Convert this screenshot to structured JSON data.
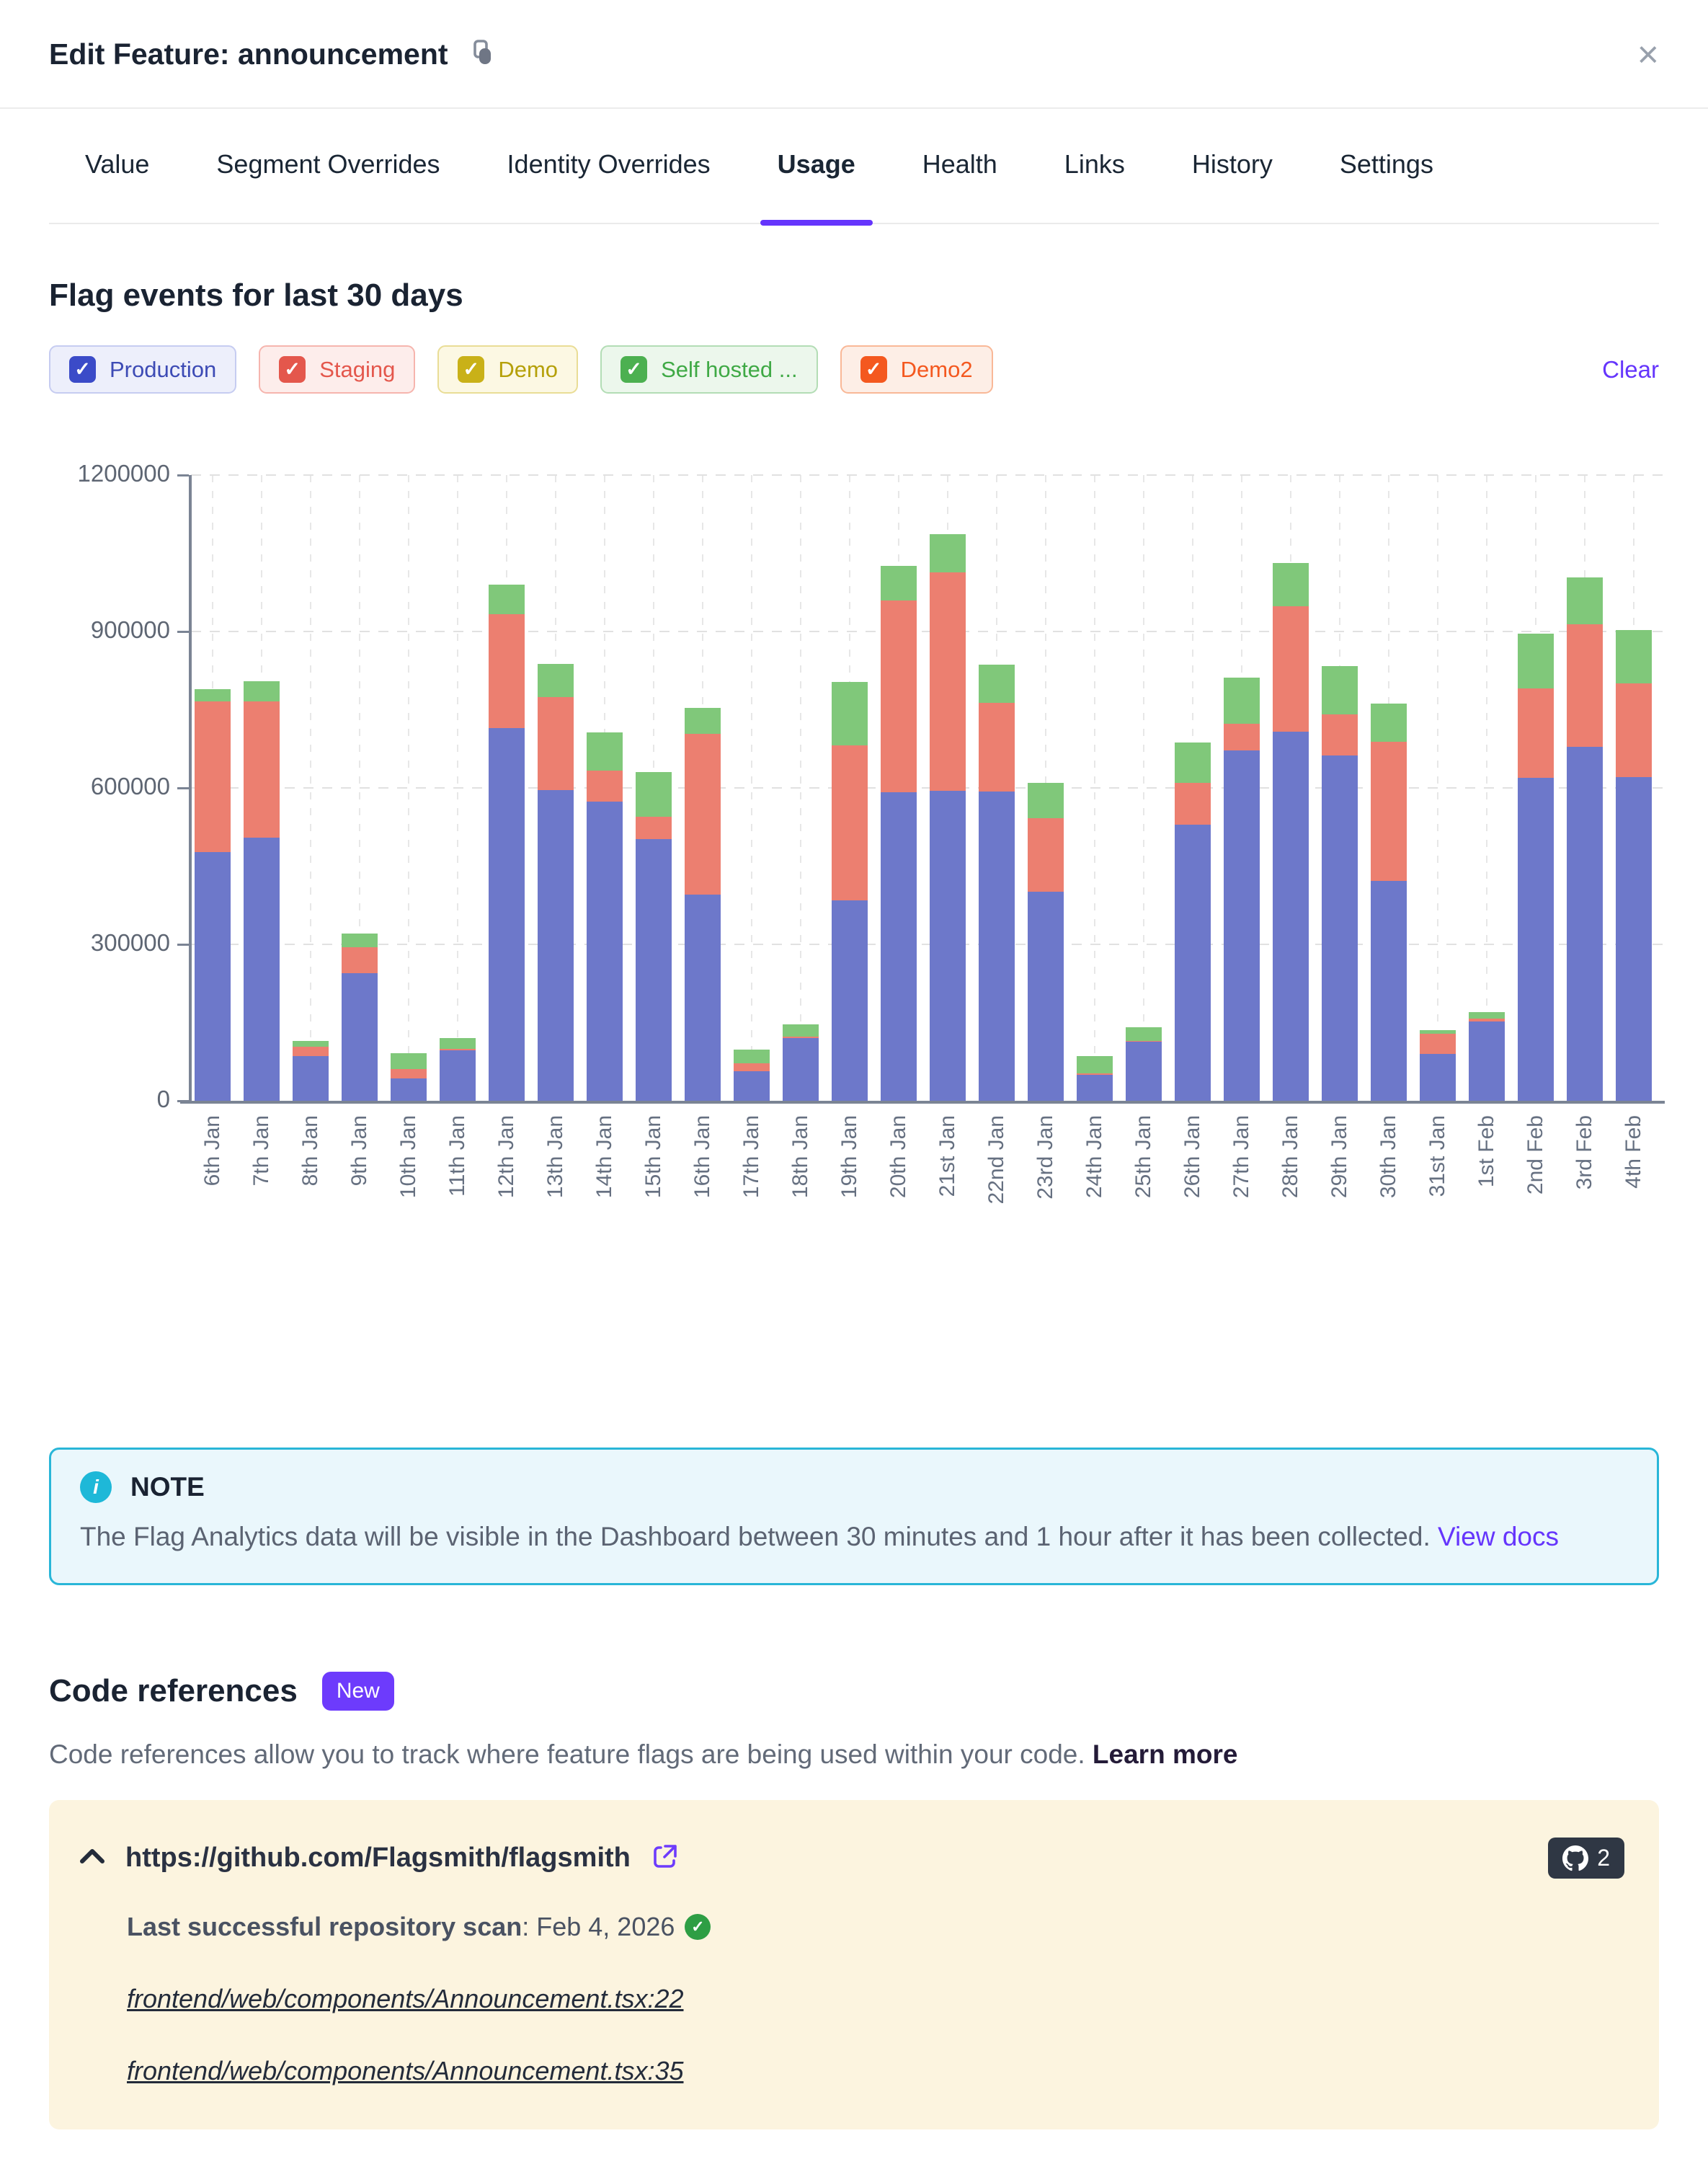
{
  "modal": {
    "title": "Edit Feature: announcement",
    "close_label": "×"
  },
  "tabs": [
    {
      "label": "Value"
    },
    {
      "label": "Segment Overrides"
    },
    {
      "label": "Identity Overrides"
    },
    {
      "label": "Usage",
      "active": true
    },
    {
      "label": "Health"
    },
    {
      "label": "Links"
    },
    {
      "label": "History"
    },
    {
      "label": "Settings"
    }
  ],
  "usage": {
    "heading": "Flag events for last 30 days",
    "clear_label": "Clear"
  },
  "legend": {
    "items": [
      {
        "label": "Production",
        "check": "#3b4bc8",
        "bg": "#edeffb",
        "border": "#c6ccf1",
        "text": "#3d4bb5"
      },
      {
        "label": "Staging",
        "check": "#e4574c",
        "bg": "#fdedeb",
        "border": "#f6b5ae",
        "text": "#e4574c"
      },
      {
        "label": "Demo",
        "check": "#c9b118",
        "bg": "#fcf8e3",
        "border": "#e9dd96",
        "text": "#b5a009"
      },
      {
        "label": "Self hosted ...",
        "check": "#4cb050",
        "bg": "#ecf7ec",
        "border": "#b3ddb5",
        "text": "#3fa945"
      },
      {
        "label": "Demo2",
        "check": "#f4581f",
        "bg": "#fdeee6",
        "border": "#f9b897",
        "text": "#f4581f"
      }
    ]
  },
  "chart_data": {
    "type": "bar",
    "stacked": true,
    "title": "Flag events for last 30 days",
    "xlabel": "",
    "ylabel": "",
    "ylim": [
      0,
      1200000
    ],
    "yticks": [
      0,
      300000,
      600000,
      900000,
      1200000
    ],
    "grid": true,
    "legend_position": "top",
    "categories": [
      "6th Jan",
      "7th Jan",
      "8th Jan",
      "9th Jan",
      "10th Jan",
      "11th Jan",
      "12th Jan",
      "13th Jan",
      "14th Jan",
      "15th Jan",
      "16th Jan",
      "17th Jan",
      "18th Jan",
      "19th Jan",
      "20th Jan",
      "21st Jan",
      "22nd Jan",
      "23rd Jan",
      "24th Jan",
      "25th Jan",
      "26th Jan",
      "27th Jan",
      "28th Jan",
      "29th Jan",
      "30th Jan",
      "31st Jan",
      "1st Feb",
      "2nd Feb",
      "3rd Feb",
      "4th Feb"
    ],
    "series": [
      {
        "name": "Production",
        "color": "#6d78ca",
        "values": [
          477000,
          505000,
          86000,
          245000,
          43000,
          97000,
          715000,
          596000,
          574000,
          502000,
          395000,
          57000,
          120000,
          385000,
          592000,
          594000,
          593000,
          401000,
          50000,
          113000,
          530000,
          672000,
          708000,
          662000,
          422000,
          90000,
          152000,
          620000,
          679000,
          621000
        ]
      },
      {
        "name": "Staging",
        "color": "#ec7f70",
        "values": [
          289000,
          261000,
          18000,
          50000,
          18000,
          2000,
          218000,
          178000,
          59000,
          43000,
          309000,
          15000,
          3000,
          297000,
          368000,
          419000,
          170000,
          141000,
          2000,
          2000,
          80000,
          51000,
          241000,
          79000,
          267000,
          38000,
          6000,
          171000,
          235000,
          179000
        ]
      },
      {
        "name": "Self hosted",
        "color": "#80c87a",
        "values": [
          23000,
          39000,
          11000,
          26000,
          30000,
          21000,
          57000,
          64000,
          74000,
          85000,
          49000,
          26000,
          24000,
          121000,
          66000,
          74000,
          74000,
          68000,
          34000,
          26000,
          77000,
          89000,
          82000,
          92000,
          73000,
          7000,
          12000,
          105000,
          90000,
          103000
        ]
      }
    ]
  },
  "note": {
    "label": "NOTE",
    "text": "The Flag Analytics data will be visible in the Dashboard between 30 minutes and 1 hour after it has been collected. ",
    "link_label": "View docs"
  },
  "code_references": {
    "heading": "Code references",
    "badge": "New",
    "description": "Code references allow you to track where feature flags are being used within your code. ",
    "learn_more": "Learn more",
    "repo": {
      "url": "https://github.com/Flagsmith/flagsmith",
      "count": "2",
      "scan_label": "Last successful repository scan",
      "scan_value": ": Feb 4, 2026",
      "files": [
        "frontend/web/components/Announcement.tsx:22",
        "frontend/web/components/Announcement.tsx:35"
      ]
    }
  }
}
